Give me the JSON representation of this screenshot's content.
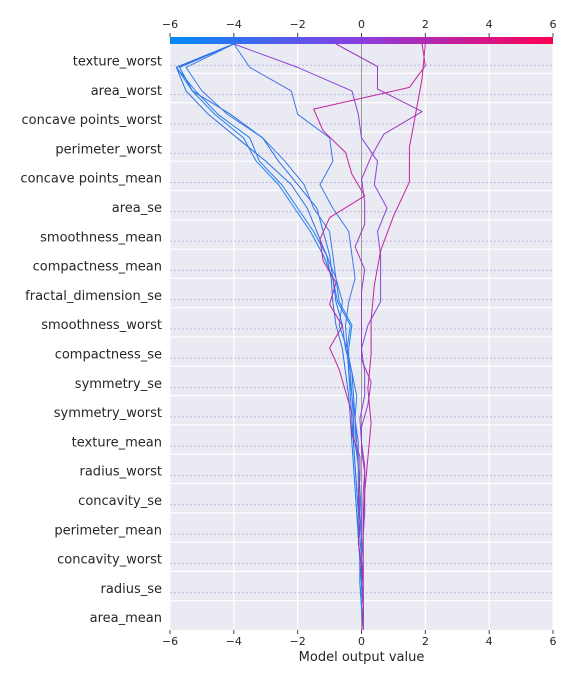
{
  "chart_data": {
    "type": "line",
    "subtype": "shap-decision-plot",
    "xlabel": "Model output value",
    "xlim": [
      -6,
      6
    ],
    "xticks": [
      -6,
      -4,
      -2,
      0,
      2,
      4,
      6
    ],
    "xtick_labels": [
      "−6",
      "−4",
      "−2",
      "0",
      "2",
      "4",
      "6"
    ],
    "base_value": 0,
    "colormap": [
      "#008bfb",
      "#8a3de0",
      "#ff0052"
    ],
    "features": [
      "texture_worst",
      "area_worst",
      "concave points_worst",
      "perimeter_worst",
      "concave points_mean",
      "area_se",
      "smoothness_mean",
      "compactness_mean",
      "fractal_dimension_se",
      "smoothness_worst",
      "compactness_se",
      "symmetry_se",
      "symmetry_worst",
      "texture_mean",
      "radius_worst",
      "concavity_se",
      "perimeter_mean",
      "concavity_worst",
      "radius_se",
      "area_mean"
    ],
    "grid": true,
    "series": [
      {
        "color": "#1f7ff0",
        "values": [
          0.05,
          0.0,
          -0.05,
          -0.05,
          -0.1,
          -0.1,
          -0.15,
          -0.2,
          -0.25,
          -0.25,
          -0.3,
          -0.4,
          -0.4,
          -0.3,
          -0.7,
          -0.8,
          -1.1,
          -1.5,
          -2.0,
          -2.5,
          -3.2,
          -3.5,
          -4.5,
          -5.2,
          -5.8,
          -4.0
        ]
      },
      {
        "color": "#1f7ff0",
        "values": [
          0.05,
          0.0,
          -0.05,
          -0.05,
          -0.1,
          -0.1,
          -0.15,
          -0.2,
          -0.25,
          -0.3,
          -0.35,
          -0.4,
          -0.45,
          -0.35,
          -0.75,
          -0.9,
          -1.2,
          -1.6,
          -2.1,
          -2.6,
          -3.3,
          -3.7,
          -4.6,
          -5.3,
          -5.8,
          -4.0
        ]
      },
      {
        "color": "#2b72e6",
        "values": [
          0.05,
          0.05,
          0.0,
          0.0,
          -0.05,
          -0.05,
          -0.1,
          -0.1,
          -0.2,
          -0.2,
          -0.25,
          -0.3,
          -0.5,
          -0.6,
          -0.8,
          -0.9,
          -1.0,
          -1.2,
          -1.4,
          -2.0,
          -2.6,
          -3.1,
          -4.1,
          -5.3,
          -5.7,
          -4.0
        ]
      },
      {
        "color": "#2b72e6",
        "values": [
          0.05,
          0.05,
          0.0,
          -0.05,
          -0.1,
          -0.15,
          -0.2,
          -0.25,
          -0.3,
          -0.35,
          -0.4,
          -0.5,
          -0.6,
          -0.8,
          -0.9,
          -0.95,
          -1.1,
          -1.4,
          -1.7,
          -2.2,
          -3.0,
          -3.9,
          -4.8,
          -5.5,
          -5.8,
          -4.0
        ]
      },
      {
        "color": "#3a7ae8",
        "values": [
          0.05,
          0.05,
          0.05,
          0.0,
          0.0,
          -0.05,
          -0.05,
          -0.1,
          -0.1,
          -0.2,
          -0.15,
          -0.3,
          -0.45,
          -0.7,
          -0.6,
          -0.8,
          -0.9,
          -1.0,
          -1.5,
          -1.8,
          -2.4,
          -3.1,
          -4.2,
          -5.0,
          -5.5,
          -4.0
        ]
      },
      {
        "color": "#3f78e8",
        "values": [
          0.05,
          0.05,
          0.05,
          0.05,
          0.0,
          0.0,
          -0.05,
          -0.1,
          -0.15,
          -0.2,
          -0.3,
          -0.35,
          -0.45,
          -0.5,
          -0.4,
          -0.2,
          -0.3,
          -0.4,
          -0.9,
          -1.3,
          -0.9,
          -1.0,
          -2.0,
          -2.2,
          -3.5,
          -4.0
        ]
      },
      {
        "color": "#8944dc",
        "values": [
          0.05,
          0.05,
          0.05,
          0.05,
          0.05,
          0.1,
          0.1,
          0.1,
          0.0,
          -0.05,
          0.1,
          0.1,
          0.0,
          0.2,
          0.6,
          0.6,
          0.6,
          0.5,
          0.8,
          0.4,
          0.5,
          0.0,
          -0.1,
          -0.3,
          -2.0,
          -4.0
        ]
      },
      {
        "color": "#a036c4",
        "values": [
          0.05,
          0.05,
          0.05,
          0.05,
          0.05,
          0.05,
          0.05,
          0.1,
          0.0,
          0.0,
          0.2,
          0.3,
          0.0,
          0.0,
          0.0,
          0.0,
          0.1,
          -0.2,
          0.1,
          0.1,
          0.0,
          0.3,
          0.7,
          1.9,
          0.5,
          0.5,
          -0.8
        ]
      },
      {
        "color": "#c2239e",
        "values": [
          0.05,
          0.05,
          0.05,
          0.05,
          0.1,
          0.2,
          0.3,
          0.2,
          0.3,
          0.3,
          0.4,
          0.6,
          1.0,
          1.5,
          1.5,
          1.7,
          1.9,
          2.0
        ]
      },
      {
        "color": "#c2239e",
        "values": [
          0.05,
          0.05,
          0.05,
          0.0,
          -0.1,
          -0.05,
          -0.1,
          -0.05,
          -0.05,
          -0.3,
          -0.3,
          -0.5,
          -0.7,
          -1.0,
          -0.6,
          -1.0,
          -0.8,
          -1.2,
          -1.3,
          -1.0,
          0.1,
          -0.3,
          -0.5,
          -1.2,
          -1.5,
          1.5,
          2.0,
          1.9
        ]
      }
    ]
  }
}
